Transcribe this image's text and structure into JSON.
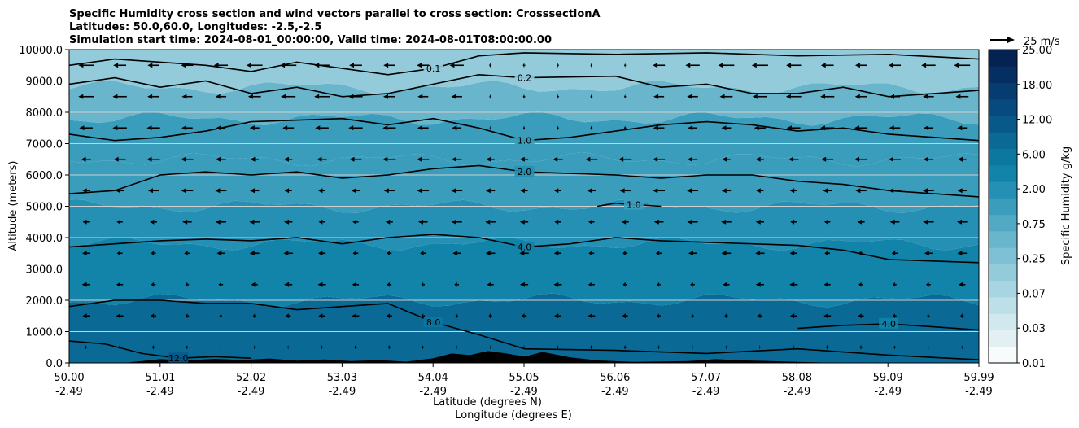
{
  "chart_data": {
    "type": "contourf_cross_section",
    "title_lines": [
      "Specific Humidity cross section and wind vectors parallel to cross section: CrosssectionA",
      "Latitudes: 50.0,60.0, Longitudes: -2.5,-2.5",
      "Simulation start time: 2024-08-01_00:00:00, Valid time: 2024-08-01T08:00:00.00"
    ],
    "ylabel": "Altitude (meters)",
    "xlabel_lat": "Latitude (degrees N)",
    "xlabel_lon": "Longitude (degrees E)",
    "ylim": [
      0,
      10000
    ],
    "xlim": [
      50.0,
      59.99
    ],
    "y_ticks": [
      "0.0",
      "1000.0",
      "2000.0",
      "3000.0",
      "4000.0",
      "5000.0",
      "6000.0",
      "7000.0",
      "8000.0",
      "9000.0",
      "10000.0"
    ],
    "x_ticks": [
      {
        "lat": "50.00",
        "lon": "-2.49"
      },
      {
        "lat": "51.01",
        "lon": "-2.49"
      },
      {
        "lat": "52.02",
        "lon": "-2.49"
      },
      {
        "lat": "53.03",
        "lon": "-2.49"
      },
      {
        "lat": "54.04",
        "lon": "-2.49"
      },
      {
        "lat": "55.05",
        "lon": "-2.49"
      },
      {
        "lat": "56.06",
        "lon": "-2.49"
      },
      {
        "lat": "57.07",
        "lon": "-2.49"
      },
      {
        "lat": "58.08",
        "lon": "-2.49"
      },
      {
        "lat": "59.09",
        "lon": "-2.49"
      },
      {
        "lat": "59.99",
        "lon": "-2.49"
      }
    ],
    "colorbar": {
      "label": "Specific Humidity g/kg",
      "levels": [
        0.01,
        0.02,
        0.03,
        0.05,
        0.07,
        0.1,
        0.25,
        0.5,
        0.75,
        1.0,
        2.0,
        4.0,
        6.0,
        9.0,
        12.0,
        15.0,
        18.0,
        21.0,
        25.0
      ],
      "tick_labels": [
        "0.01",
        "0.03",
        "0.07",
        "0.25",
        "0.75",
        "2.00",
        "6.00",
        "12.00",
        "18.00",
        "25.00"
      ],
      "colors": [
        "#f7fbfc",
        "#e3f0f3",
        "#d0e8ee",
        "#bcdfe8",
        "#a8d5e2",
        "#93cbdb",
        "#7ec0d4",
        "#68b5cc",
        "#52a9c4",
        "#3b9dbc",
        "#2590b3",
        "#1283a9",
        "#0c779f",
        "#0a6a95",
        "#08598a",
        "#074a7e",
        "#063c70",
        "#052f62",
        "#042252"
      ],
      "vector_key": "25 m/s"
    },
    "band_levels": [
      {
        "alt_from": 0,
        "alt_to": 2000,
        "value": 9.0
      },
      {
        "alt_from": 2000,
        "alt_to": 3800,
        "value": 5.0
      },
      {
        "alt_from": 3800,
        "alt_to": 5000,
        "value": 3.0
      },
      {
        "alt_from": 5000,
        "alt_to": 6500,
        "value": 1.8
      },
      {
        "alt_from": 6500,
        "alt_to": 7800,
        "value": 1.0
      },
      {
        "alt_from": 7800,
        "alt_to": 8800,
        "value": 0.5
      },
      {
        "alt_from": 8800,
        "alt_to": 10000,
        "value": 0.2
      }
    ],
    "contours": [
      {
        "level": "0.1",
        "points": [
          [
            50.0,
            9500
          ],
          [
            50.5,
            9700
          ],
          [
            51.0,
            9600
          ],
          [
            51.5,
            9500
          ],
          [
            52.0,
            9300
          ],
          [
            52.5,
            9600
          ],
          [
            53.0,
            9400
          ],
          [
            53.5,
            9200
          ],
          [
            54.0,
            9400
          ],
          [
            54.5,
            9800
          ],
          [
            55.0,
            9900
          ],
          [
            56.0,
            9850
          ],
          [
            57.0,
            9900
          ],
          [
            58.0,
            9800
          ],
          [
            59.0,
            9850
          ],
          [
            59.99,
            9700
          ]
        ]
      },
      {
        "level": "0.2",
        "points": [
          [
            50.0,
            8900
          ],
          [
            50.5,
            9100
          ],
          [
            51.0,
            8800
          ],
          [
            51.5,
            9000
          ],
          [
            52.0,
            8600
          ],
          [
            52.5,
            8800
          ],
          [
            53.0,
            8500
          ],
          [
            53.5,
            8600
          ],
          [
            54.0,
            8900
          ],
          [
            54.5,
            9200
          ],
          [
            55.0,
            9100
          ],
          [
            56.0,
            9150
          ],
          [
            56.5,
            8800
          ],
          [
            57.0,
            8900
          ],
          [
            57.5,
            8600
          ],
          [
            58.0,
            8600
          ],
          [
            58.5,
            8800
          ],
          [
            59.0,
            8500
          ],
          [
            59.5,
            8600
          ],
          [
            59.99,
            8700
          ]
        ]
      },
      {
        "level": "1.0",
        "points": [
          [
            50.0,
            7300
          ],
          [
            50.5,
            7100
          ],
          [
            51.0,
            7200
          ],
          [
            51.5,
            7400
          ],
          [
            52.0,
            7700
          ],
          [
            53.0,
            7800
          ],
          [
            53.5,
            7600
          ],
          [
            54.0,
            7800
          ],
          [
            54.5,
            7500
          ],
          [
            55.0,
            7100
          ],
          [
            55.5,
            7200
          ],
          [
            56.0,
            7400
          ],
          [
            56.5,
            7600
          ],
          [
            57.0,
            7700
          ],
          [
            57.5,
            7600
          ],
          [
            58.0,
            7400
          ],
          [
            58.5,
            7500
          ],
          [
            59.0,
            7300
          ],
          [
            59.99,
            7100
          ]
        ]
      },
      {
        "level": "2.0",
        "points": [
          [
            50.0,
            5400
          ],
          [
            50.5,
            5500
          ],
          [
            51.0,
            6000
          ],
          [
            51.5,
            6100
          ],
          [
            52.0,
            6000
          ],
          [
            52.5,
            6100
          ],
          [
            53.0,
            5900
          ],
          [
            53.5,
            6000
          ],
          [
            54.0,
            6200
          ],
          [
            54.5,
            6300
          ],
          [
            55.0,
            6100
          ],
          [
            55.5,
            6050
          ],
          [
            56.0,
            6000
          ],
          [
            56.5,
            5900
          ],
          [
            57.0,
            6000
          ],
          [
            57.5,
            6000
          ],
          [
            58.0,
            5800
          ],
          [
            58.5,
            5700
          ],
          [
            59.0,
            5500
          ],
          [
            59.99,
            5300
          ]
        ]
      },
      {
        "level": "1.0",
        "points": [
          [
            55.8,
            5000
          ],
          [
            56.0,
            5100
          ],
          [
            56.2,
            5050
          ],
          [
            56.5,
            5000
          ]
        ]
      },
      {
        "level": "4.0",
        "points": [
          [
            50.0,
            3700
          ],
          [
            50.5,
            3800
          ],
          [
            51.0,
            3900
          ],
          [
            51.5,
            3950
          ],
          [
            52.0,
            3900
          ],
          [
            52.5,
            4000
          ],
          [
            53.0,
            3800
          ],
          [
            53.5,
            4000
          ],
          [
            54.0,
            4100
          ],
          [
            54.5,
            4000
          ],
          [
            55.0,
            3700
          ],
          [
            55.5,
            3800
          ],
          [
            56.0,
            4000
          ],
          [
            56.5,
            3900
          ],
          [
            57.0,
            3850
          ],
          [
            57.5,
            3800
          ],
          [
            58.0,
            3750
          ],
          [
            58.5,
            3600
          ],
          [
            59.0,
            3300
          ],
          [
            59.99,
            3200
          ]
        ]
      },
      {
        "level": "8.0",
        "points": [
          [
            50.0,
            1800
          ],
          [
            50.5,
            2000
          ],
          [
            51.0,
            2000
          ],
          [
            51.5,
            1900
          ],
          [
            52.0,
            1900
          ],
          [
            52.5,
            1700
          ],
          [
            53.0,
            1800
          ],
          [
            53.5,
            1900
          ],
          [
            54.0,
            1300
          ],
          [
            54.5,
            900
          ],
          [
            55.0,
            450
          ],
          [
            56.0,
            400
          ],
          [
            57.0,
            300
          ],
          [
            58.0,
            450
          ],
          [
            59.0,
            250
          ],
          [
            59.99,
            100
          ]
        ]
      },
      {
        "level": "4.0",
        "points": [
          [
            58.0,
            1100
          ],
          [
            58.5,
            1200
          ],
          [
            59.0,
            1250
          ],
          [
            59.5,
            1150
          ],
          [
            59.99,
            1050
          ]
        ]
      },
      {
        "level": "12.0",
        "points": [
          [
            50.0,
            700
          ],
          [
            50.4,
            600
          ],
          [
            50.8,
            300
          ],
          [
            51.2,
            150
          ],
          [
            51.6,
            200
          ],
          [
            52.0,
            150
          ]
        ]
      }
    ],
    "wind_vectors_note": "westward-pointing arrows (flow toward lower latitudes), strongest near 9000-10000 m"
  }
}
